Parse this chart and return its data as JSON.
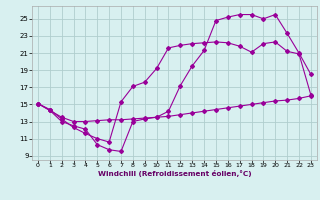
{
  "xlabel": "Windchill (Refroidissement éolien,°C)",
  "background_color": "#d8f0f0",
  "line_color": "#990099",
  "grid_color": "#b0cece",
  "xlim": [
    -0.5,
    23.5
  ],
  "ylim": [
    8.5,
    26.5
  ],
  "yticks": [
    9,
    11,
    13,
    15,
    17,
    19,
    21,
    23,
    25
  ],
  "xticks": [
    0,
    1,
    2,
    3,
    4,
    5,
    6,
    7,
    8,
    9,
    10,
    11,
    12,
    13,
    14,
    15,
    16,
    17,
    18,
    19,
    20,
    21,
    22,
    23
  ],
  "s0_x": [
    0,
    1,
    2,
    3,
    4,
    5,
    6,
    7,
    8,
    9,
    10,
    11,
    12,
    13,
    14,
    15,
    16,
    17,
    18,
    19,
    20,
    21,
    22,
    23
  ],
  "s0_y": [
    15.1,
    14.3,
    13.0,
    12.5,
    12.1,
    10.3,
    9.7,
    9.5,
    13.0,
    13.3,
    13.5,
    14.2,
    17.2,
    19.5,
    21.3,
    24.8,
    25.2,
    25.5,
    25.5,
    25.0,
    25.5,
    23.3,
    21.0,
    18.5
  ],
  "s1_x": [
    0,
    1,
    2,
    3,
    4,
    5,
    6,
    7,
    8,
    9,
    10,
    11,
    12,
    13,
    14,
    15,
    16,
    17,
    18,
    19,
    20,
    21,
    22,
    23
  ],
  "s1_y": [
    15.1,
    14.4,
    13.3,
    12.3,
    11.6,
    11.0,
    10.6,
    15.3,
    17.1,
    17.6,
    19.2,
    21.6,
    21.9,
    22.1,
    22.2,
    22.3,
    22.2,
    21.8,
    21.1,
    22.1,
    22.3,
    21.2,
    20.9,
    16.1
  ],
  "s2_x": [
    0,
    1,
    2,
    3,
    4,
    5,
    6,
    7,
    8,
    9,
    10,
    11,
    12,
    13,
    14,
    15,
    16,
    17,
    18,
    19,
    20,
    21,
    22,
    23
  ],
  "s2_y": [
    15.1,
    14.3,
    13.5,
    13.0,
    13.0,
    13.1,
    13.2,
    13.2,
    13.3,
    13.4,
    13.5,
    13.6,
    13.8,
    14.0,
    14.2,
    14.4,
    14.6,
    14.8,
    15.0,
    15.2,
    15.4,
    15.5,
    15.7,
    16.0
  ]
}
